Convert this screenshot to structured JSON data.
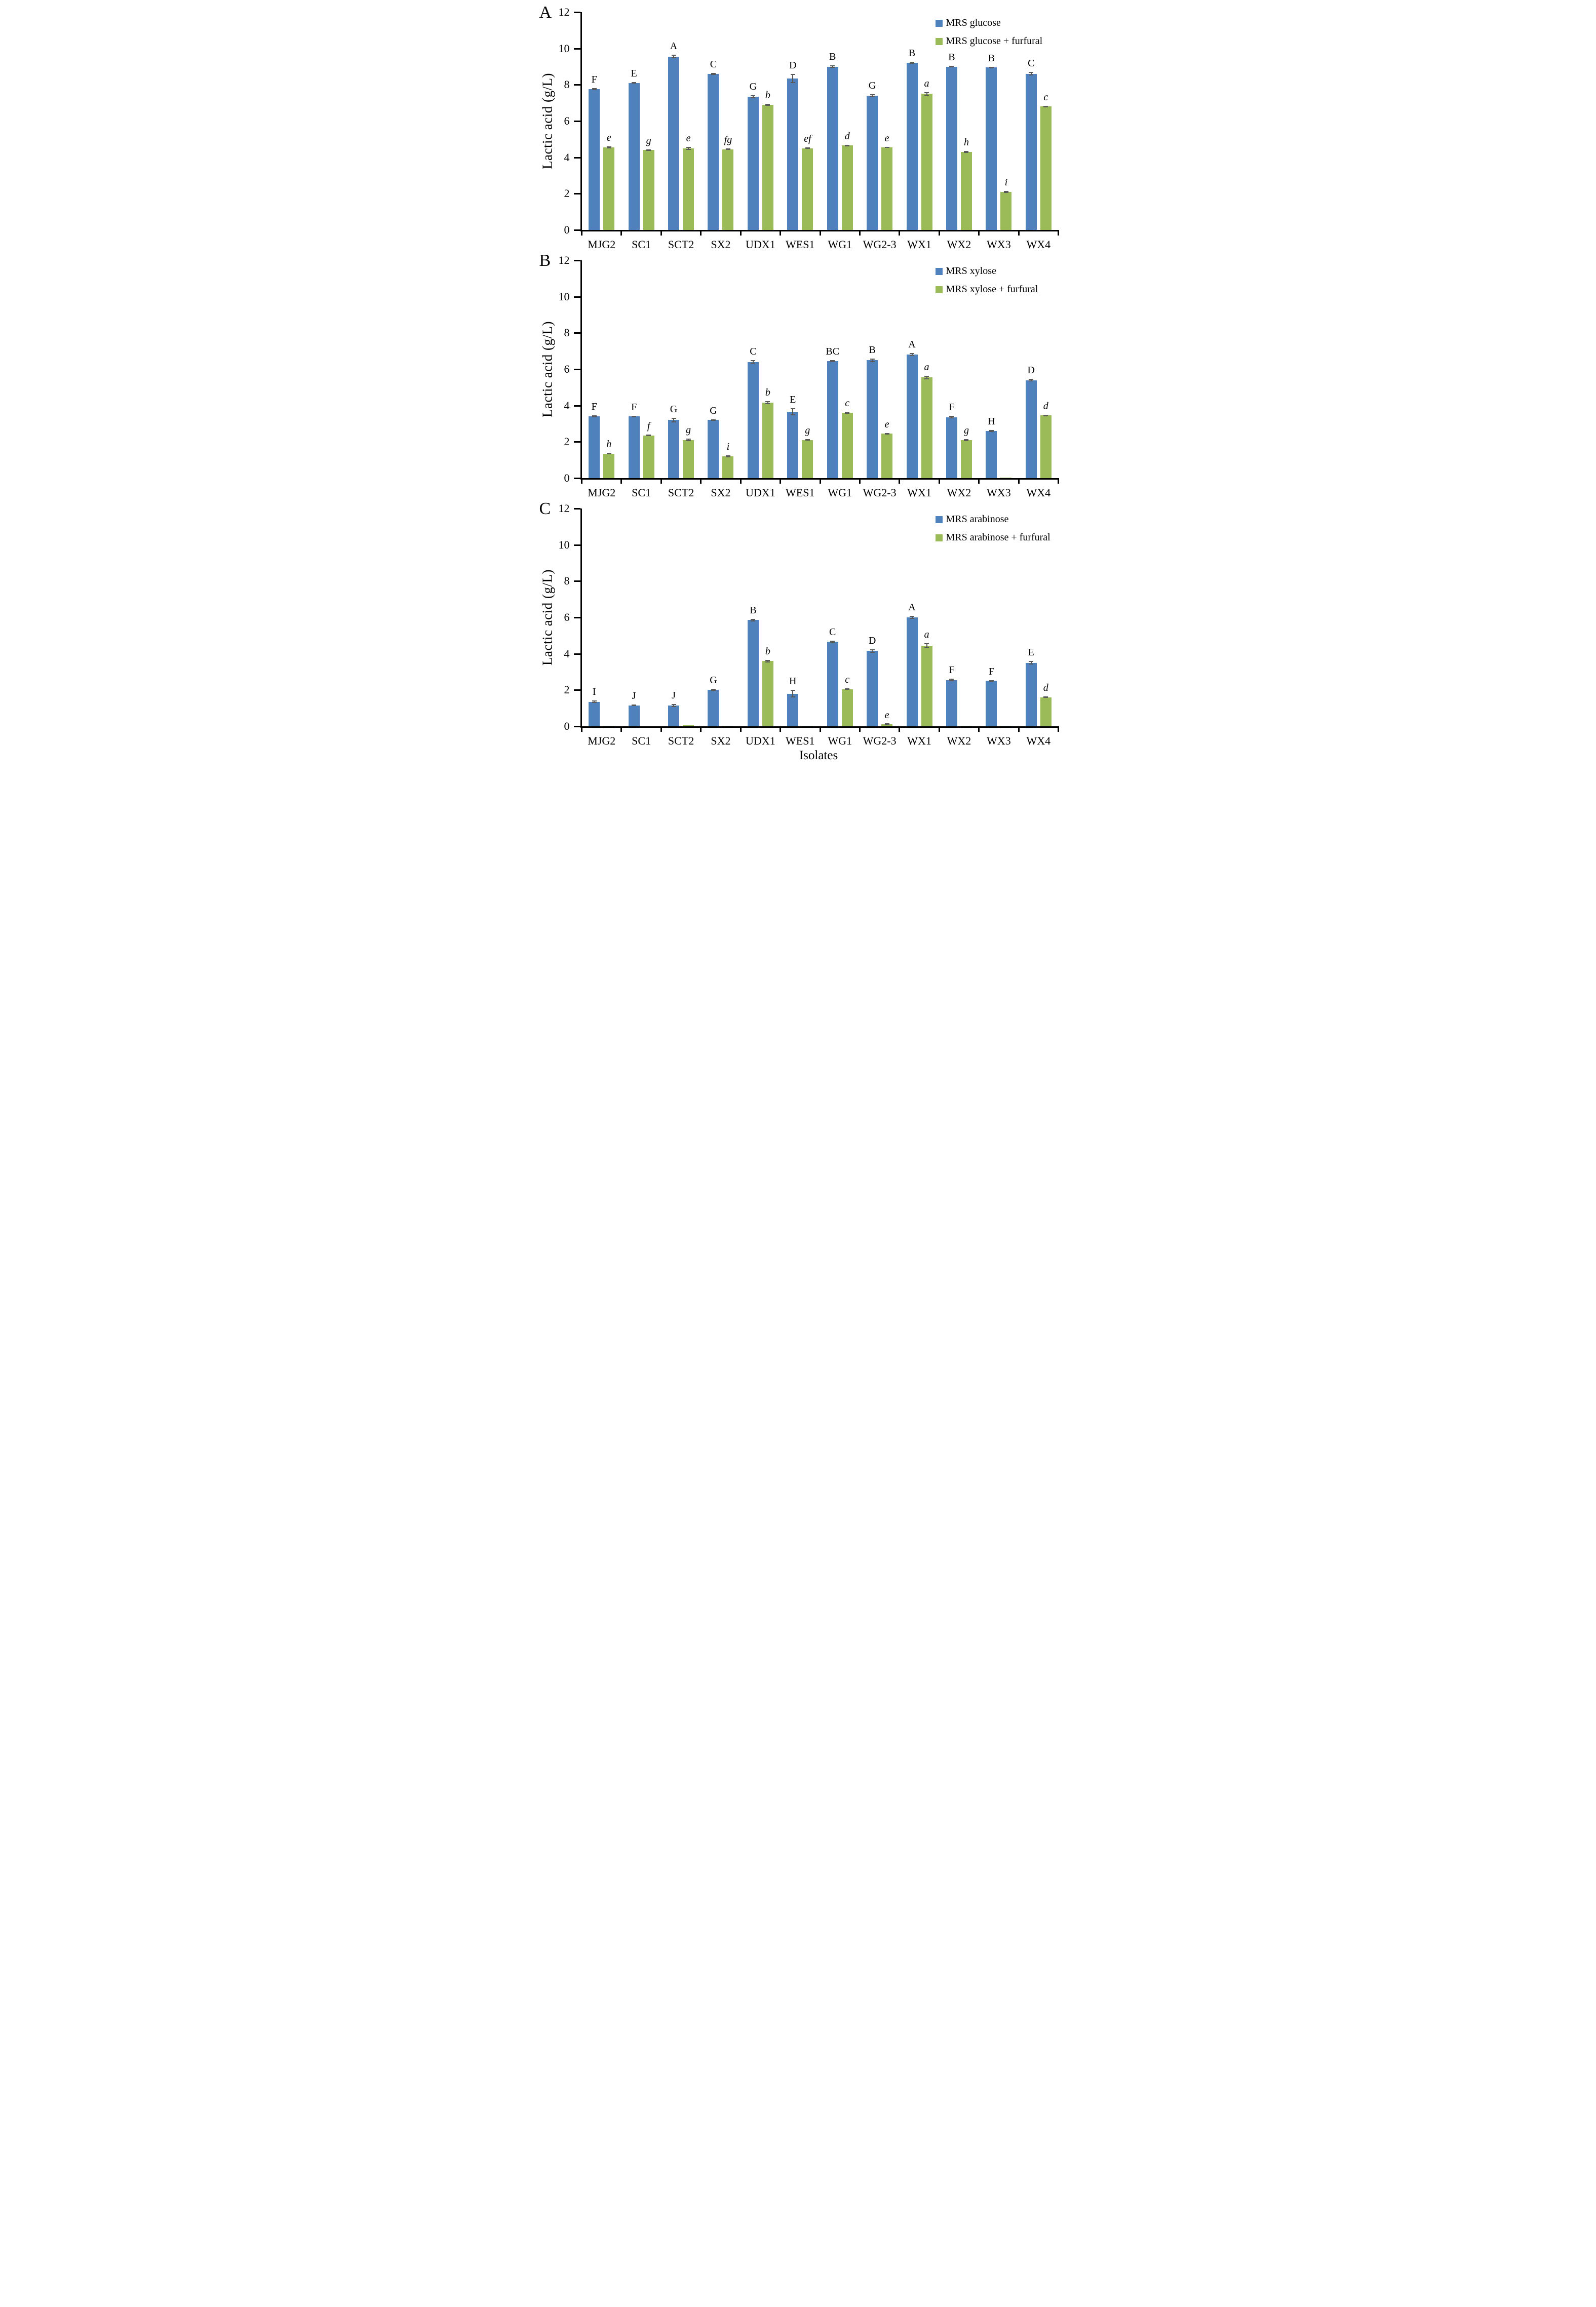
{
  "figure": {
    "xlabel": "Isolates",
    "ylabel": "Lactic acid (g/L)",
    "colors": {
      "series1": "#4F81BD",
      "series2": "#9BBB59",
      "error": "#595959",
      "axis": "#000000"
    }
  },
  "chart_data": [
    {
      "type": "bar",
      "panel_label": "A",
      "ylabel": "Lactic acid (g/L)",
      "ylim": [
        0,
        12
      ],
      "yticks": [
        0,
        2,
        4,
        6,
        8,
        10,
        12
      ],
      "grid": false,
      "legend_position": "top-right-inside",
      "categories": [
        "MJG2",
        "SC1",
        "SCT2",
        "SX2",
        "UDX1",
        "WES1",
        "WG1",
        "WG2-3",
        "WX1",
        "WX2",
        "WX3",
        "WX4"
      ],
      "series": [
        {
          "name": "MRS glucose",
          "color": "#4F81BD",
          "values": [
            7.75,
            8.1,
            9.55,
            8.6,
            7.35,
            8.35,
            9.0,
            7.4,
            9.2,
            9.0,
            8.95,
            8.6
          ],
          "errors": [
            0.06,
            0.04,
            0.1,
            0.05,
            0.08,
            0.25,
            0.06,
            0.08,
            0.06,
            0.05,
            0.04,
            0.1
          ],
          "sig_letters": [
            "F",
            "E",
            "A",
            "C",
            "G",
            "D",
            "B",
            "G",
            "B",
            "B",
            "B",
            "C"
          ]
        },
        {
          "name": "MRS glucose + furfural",
          "color": "#9BBB59",
          "values": [
            4.55,
            4.4,
            4.5,
            4.45,
            6.9,
            4.5,
            4.65,
            4.55,
            7.5,
            4.3,
            2.1,
            6.8
          ],
          "errors": [
            0.05,
            0.04,
            0.08,
            0.04,
            0.05,
            0.04,
            0.04,
            0.04,
            0.1,
            0.05,
            0.05,
            0.05
          ],
          "sig_letters": [
            "e",
            "g",
            "e",
            "fg",
            "b",
            "ef",
            "d",
            "e",
            "a",
            "h",
            "i",
            "c"
          ]
        }
      ]
    },
    {
      "type": "bar",
      "panel_label": "B",
      "ylabel": "Lactic acid (g/L)",
      "ylim": [
        0,
        12
      ],
      "yticks": [
        0,
        2,
        4,
        6,
        8,
        10,
        12
      ],
      "grid": false,
      "legend_position": "top-right-inside",
      "categories": [
        "MJG2",
        "SC1",
        "SCT2",
        "SX2",
        "UDX1",
        "WES1",
        "WG1",
        "WG2-3",
        "WX1",
        "WX2",
        "WX3",
        "WX4"
      ],
      "series": [
        {
          "name": "MRS xylose",
          "color": "#4F81BD",
          "values": [
            3.4,
            3.4,
            3.2,
            3.2,
            6.4,
            3.65,
            6.45,
            6.5,
            6.8,
            3.35,
            2.6,
            5.4
          ],
          "errors": [
            0.05,
            0.04,
            0.12,
            0.05,
            0.1,
            0.2,
            0.06,
            0.1,
            0.08,
            0.07,
            0.05,
            0.08
          ],
          "sig_letters": [
            "F",
            "F",
            "G",
            "G",
            "C",
            "E",
            "BC",
            "B",
            "A",
            "F",
            "H",
            "D"
          ]
        },
        {
          "name": "MRS xylose + furfural",
          "color": "#9BBB59",
          "values": [
            1.35,
            2.35,
            2.1,
            1.2,
            4.15,
            2.1,
            3.6,
            2.45,
            5.55,
            2.1,
            0.03,
            3.45
          ],
          "errors": [
            0.05,
            0.04,
            0.07,
            0.05,
            0.08,
            0.04,
            0.05,
            0.04,
            0.1,
            0.05,
            0,
            0.04
          ],
          "sig_letters": [
            "h",
            "f",
            "g",
            "i",
            "b",
            "g",
            "c",
            "e",
            "a",
            "g",
            "",
            "d"
          ]
        }
      ]
    },
    {
      "type": "bar",
      "panel_label": "C",
      "ylabel": "Lactic acid (g/L)",
      "ylim": [
        0,
        12
      ],
      "yticks": [
        0,
        2,
        4,
        6,
        8,
        10,
        12
      ],
      "grid": false,
      "legend_position": "top-right-inside",
      "categories": [
        "MJG2",
        "SC1",
        "SCT2",
        "SX2",
        "UDX1",
        "WES1",
        "WG1",
        "WG2-3",
        "WX1",
        "WX2",
        "WX3",
        "WX4"
      ],
      "series": [
        {
          "name": "MRS arabinose",
          "color": "#4F81BD",
          "values": [
            1.35,
            1.15,
            1.15,
            2.0,
            5.85,
            1.8,
            4.65,
            4.15,
            6.0,
            2.55,
            2.5,
            3.5
          ],
          "errors": [
            0.07,
            0.04,
            0.09,
            0.06,
            0.08,
            0.2,
            0.07,
            0.1,
            0.09,
            0.07,
            0.05,
            0.09
          ],
          "sig_letters": [
            "I",
            "J",
            "J",
            "G",
            "B",
            "H",
            "C",
            "D",
            "A",
            "F",
            "F",
            "E"
          ]
        },
        {
          "name": "MRS arabinose + furfural",
          "color": "#9BBB59",
          "values": [
            0.03,
            0,
            0.05,
            0.03,
            3.6,
            0.03,
            2.05,
            0.12,
            4.45,
            0.02,
            0.03,
            1.6
          ],
          "errors": [
            0,
            0,
            0,
            0,
            0.07,
            0,
            0.05,
            0.03,
            0.12,
            0,
            0,
            0.05
          ],
          "sig_letters": [
            "",
            "",
            "",
            "",
            "b",
            "",
            "c",
            "e",
            "a",
            "",
            "",
            "d"
          ]
        }
      ]
    }
  ]
}
